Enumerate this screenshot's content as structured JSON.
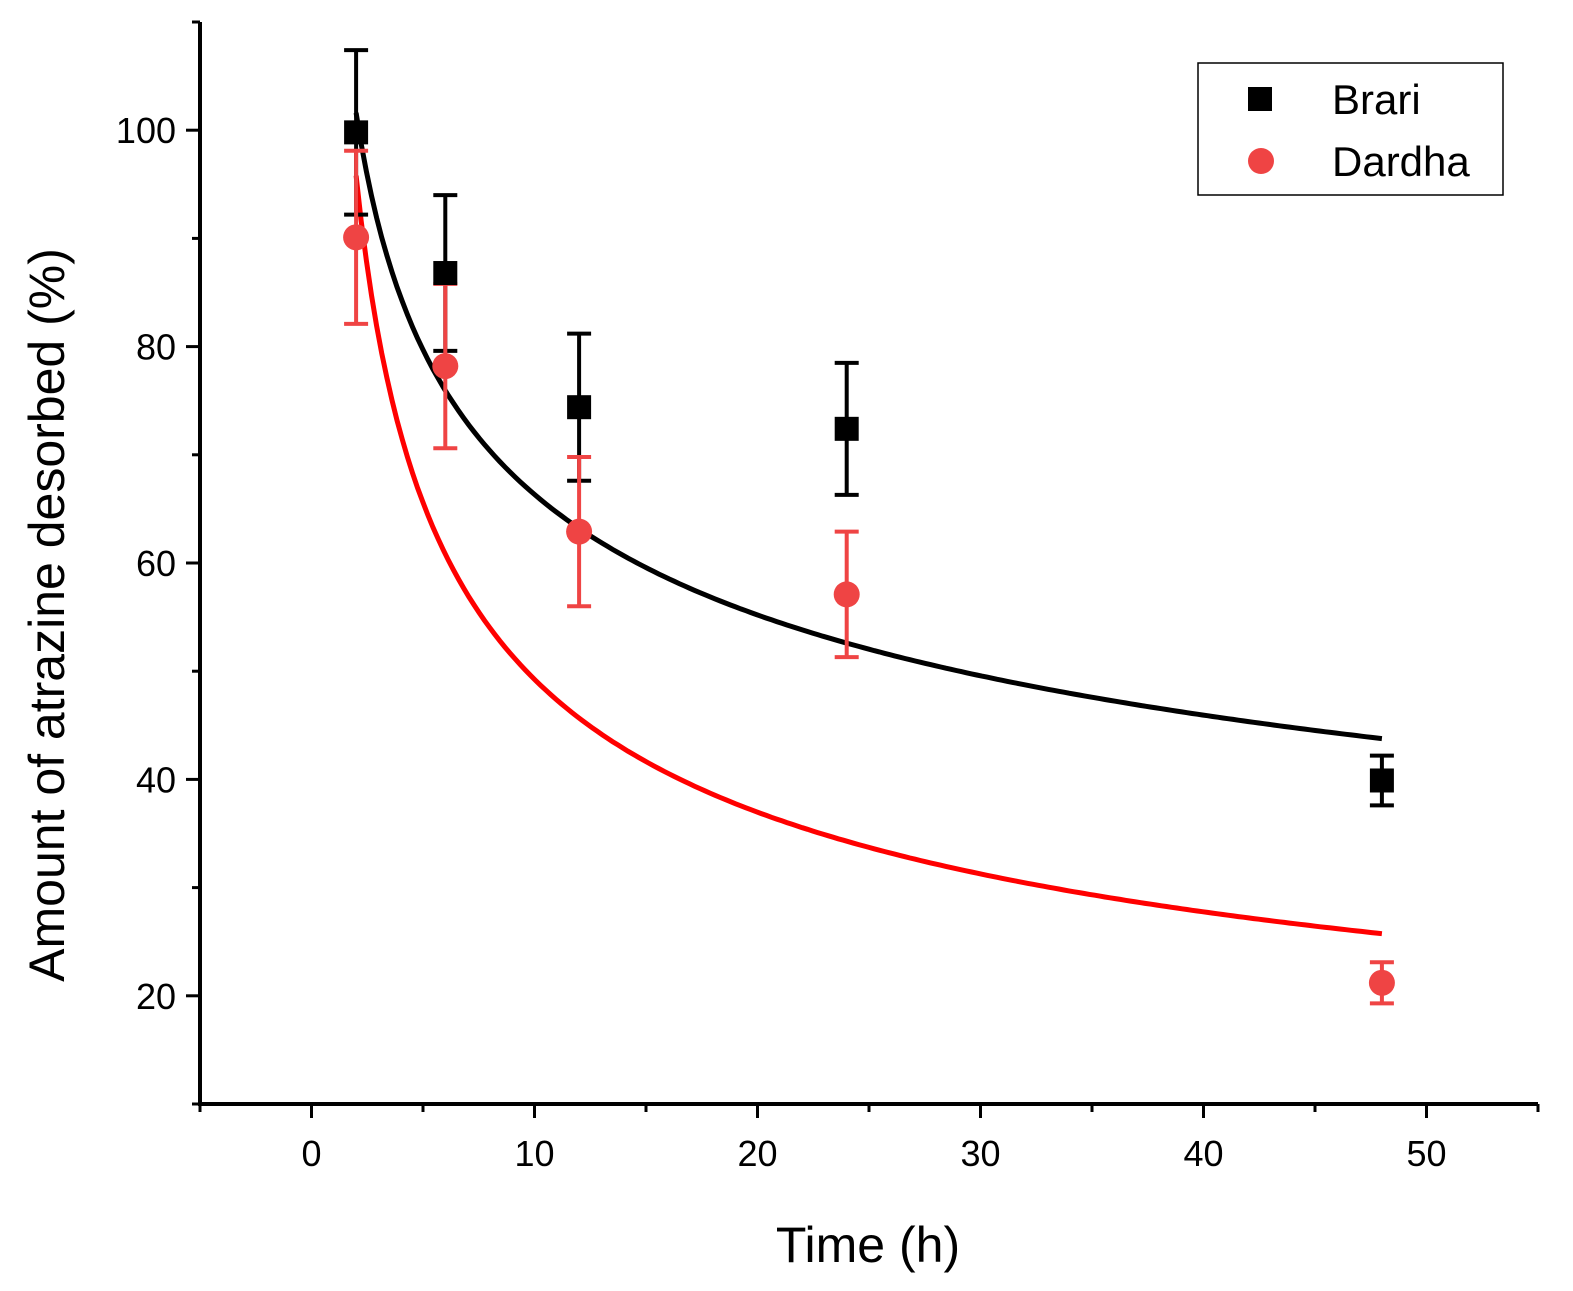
{
  "chart_data": {
    "type": "scatter",
    "title": "",
    "xlabel": "Time (h)",
    "ylabel": "Amount of atrazine desorbed (%)",
    "xlim": [
      -5,
      55
    ],
    "ylim": [
      10,
      110
    ],
    "xticks": [
      0,
      10,
      20,
      30,
      40,
      50
    ],
    "yticks": [
      20,
      40,
      60,
      80,
      100
    ],
    "grid": false,
    "legend_position": "top-right",
    "series": [
      {
        "name": "Brari",
        "marker": "square",
        "color": "#000000",
        "x": [
          2,
          6,
          12,
          24,
          48
        ],
        "y": [
          99.8,
          86.8,
          74.4,
          72.4,
          39.9
        ],
        "yerr": [
          7.6,
          7.2,
          6.8,
          6.1,
          2.3
        ],
        "fit": {
          "color": "#000000",
          "a": 122.1,
          "b": -0.265,
          "x_range": [
            2,
            48
          ]
        }
      },
      {
        "name": "Dardha",
        "marker": "circle",
        "color": "#ef4444",
        "x": [
          2,
          6,
          12,
          24,
          48
        ],
        "y": [
          90.1,
          78.2,
          62.9,
          57.1,
          21.2
        ],
        "yerr": [
          8.0,
          7.6,
          6.9,
          5.8,
          1.9
        ],
        "fit": {
          "color": "#ff0000",
          "a": 127.6,
          "b": -0.4135,
          "x_range": [
            2,
            48
          ]
        }
      }
    ]
  }
}
